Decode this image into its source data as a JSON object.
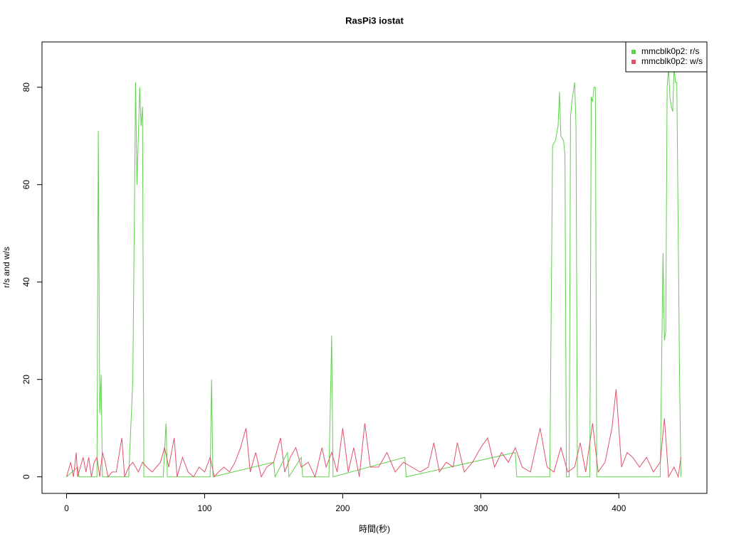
{
  "chart_data": {
    "type": "line",
    "title": "RasPi3 iostat",
    "x_label": "時間(秒)",
    "y_label": "r/s and w/s",
    "xlim": [
      -17.8,
      463.8
    ],
    "ylim": [
      -3.4,
      89.3
    ],
    "xticks": [
      0,
      100,
      200,
      300,
      400
    ],
    "yticks": [
      0,
      20,
      40,
      60,
      80
    ],
    "legend": "top-right",
    "series": [
      {
        "name": "mmcblk0p2: r/s",
        "color": "#61D04F",
        "x": [
          0,
          8,
          9,
          22,
          23,
          24,
          25,
          26,
          45,
          48,
          50,
          51,
          53,
          54,
          55,
          56,
          70,
          72,
          73,
          104,
          105,
          106,
          150,
          151,
          160,
          161,
          170,
          171,
          190,
          192,
          193,
          245,
          246,
          325,
          326,
          350,
          352,
          354,
          356,
          357,
          358,
          360,
          361,
          362,
          364,
          365,
          366,
          368,
          369,
          370,
          379,
          380,
          381,
          382,
          383,
          384,
          430,
          432,
          433,
          434,
          435,
          436,
          437,
          438,
          439,
          440,
          441,
          442,
          444,
          445
        ],
        "values": [
          0,
          2,
          0,
          0,
          71,
          13,
          21,
          0,
          0,
          20,
          81,
          60,
          80,
          72,
          76,
          0,
          0,
          11,
          0,
          0,
          20,
          0,
          3,
          0,
          5,
          0,
          4,
          0,
          0,
          29,
          0,
          4,
          0,
          5,
          0,
          0,
          68,
          69,
          72,
          79,
          70,
          69,
          66,
          0,
          0,
          74,
          77,
          81,
          72,
          0,
          0,
          78,
          77,
          80,
          80,
          0,
          0,
          46,
          28,
          30,
          80,
          84,
          78,
          76,
          75,
          84,
          81,
          81,
          20,
          0
        ]
      },
      {
        "name": "mmcblk0p2: w/s",
        "color": "#DF536B",
        "x": [
          0,
          3,
          5,
          7,
          8,
          10,
          12,
          14,
          16,
          18,
          20,
          22,
          24,
          26,
          28,
          30,
          33,
          36,
          40,
          42,
          45,
          48,
          52,
          55,
          58,
          62,
          65,
          68,
          71,
          74,
          78,
          80,
          84,
          88,
          92,
          96,
          100,
          104,
          107,
          110,
          114,
          118,
          122,
          126,
          130,
          133,
          137,
          141,
          145,
          150,
          155,
          158,
          162,
          166,
          170,
          175,
          180,
          185,
          188,
          192,
          196,
          200,
          204,
          208,
          212,
          216,
          220,
          226,
          232,
          238,
          244,
          250,
          256,
          262,
          266,
          270,
          275,
          280,
          283,
          288,
          294,
          300,
          305,
          310,
          315,
          320,
          325,
          330,
          336,
          343,
          348,
          353,
          358,
          363,
          368,
          372,
          376,
          381,
          385,
          390,
          395,
          398,
          402,
          406,
          410,
          415,
          420,
          425,
          430,
          433,
          436,
          440,
          443,
          445
        ],
        "values": [
          0,
          3,
          0,
          5,
          0,
          2,
          4,
          1,
          4,
          0,
          3,
          4,
          0,
          5,
          3,
          0,
          1,
          1,
          8,
          0,
          2,
          3,
          1,
          3,
          2,
          1,
          2,
          3,
          6,
          2,
          8,
          0,
          4,
          1,
          0,
          2,
          1,
          4,
          0,
          1,
          2,
          1,
          3,
          6,
          10,
          1,
          5,
          0,
          2,
          3,
          8,
          1,
          4,
          6,
          2,
          3,
          0,
          6,
          2,
          5,
          1,
          10,
          1,
          6,
          0,
          11,
          2,
          2,
          5,
          1,
          3,
          2,
          1,
          2,
          7,
          1,
          3,
          2,
          7,
          1,
          3,
          6,
          8,
          2,
          5,
          3,
          6,
          2,
          1,
          10,
          2,
          1,
          6,
          1,
          2,
          7,
          1,
          11,
          1,
          3,
          10,
          18,
          2,
          5,
          4,
          2,
          4,
          1,
          3,
          12,
          0,
          2,
          0,
          4
        ]
      }
    ]
  }
}
